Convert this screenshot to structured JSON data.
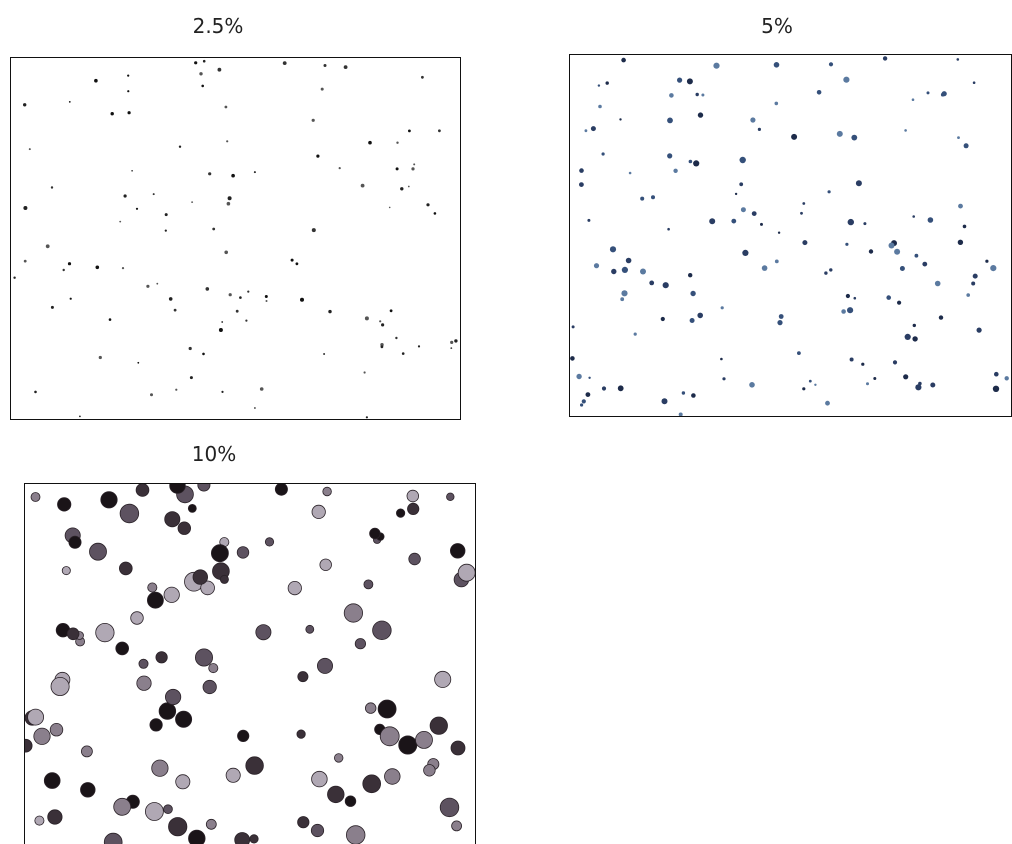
{
  "panels": [
    {
      "label": "2.5%"
    },
    {
      "label": "5%"
    },
    {
      "label": "10%"
    }
  ]
}
